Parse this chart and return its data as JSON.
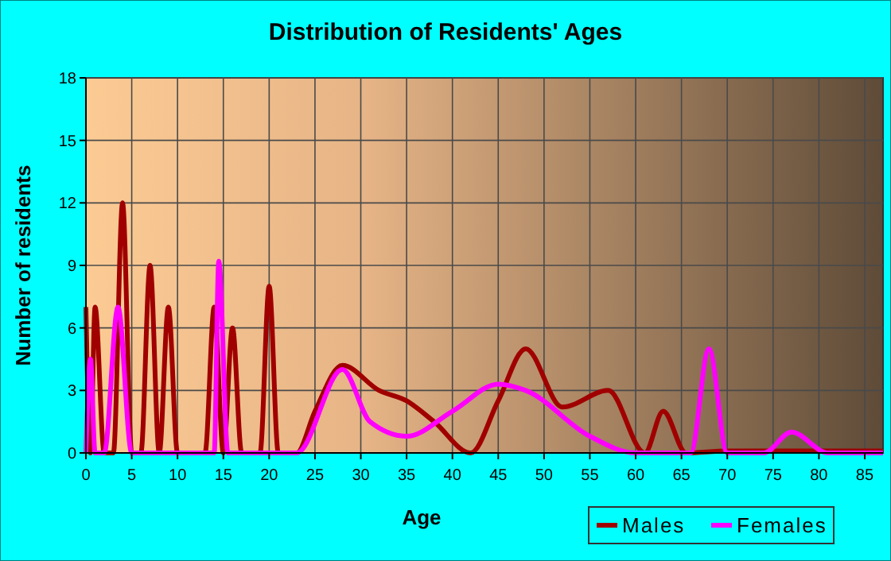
{
  "chart_data": {
    "type": "line",
    "title": "Distribution of Residents' Ages",
    "xlabel": "Age",
    "ylabel": "Number of residents",
    "xlim": [
      0,
      87
    ],
    "xticks": [
      0,
      5,
      10,
      15,
      20,
      25,
      30,
      35,
      40,
      45,
      50,
      55,
      60,
      65,
      70,
      75,
      80,
      85
    ],
    "ylim": [
      0,
      18
    ],
    "yticks": [
      0,
      3,
      6,
      9,
      12,
      15,
      18
    ],
    "grid": true,
    "legend": "bottom right",
    "marker": "none",
    "line_style": "solid",
    "series": [
      {
        "name": "Males",
        "color": "#a00000",
        "x": [
          0,
          0.5,
          1,
          2,
          3,
          4,
          5,
          6,
          7,
          8,
          9,
          10,
          13,
          14,
          15,
          16,
          17,
          19,
          20,
          21,
          23,
          25,
          28,
          32,
          35,
          38,
          42,
          45,
          48,
          52,
          57,
          61,
          63,
          65.5,
          70,
          87
        ],
        "values": [
          7,
          0,
          7,
          0,
          0,
          12,
          0,
          0,
          9,
          0,
          7,
          0,
          0,
          7,
          0,
          6,
          0,
          0,
          8,
          0,
          0,
          2,
          4.2,
          3,
          2.5,
          1.5,
          0,
          2.5,
          5,
          2.2,
          3,
          0,
          2,
          0,
          0.1,
          0.1
        ]
      },
      {
        "name": "Females",
        "color": "#ff00ff",
        "x": [
          0,
          0.5,
          1,
          2,
          3.5,
          5,
          6,
          14,
          14.5,
          15.5,
          23,
          28,
          31,
          35,
          40,
          45,
          48,
          55,
          60,
          66,
          68,
          70,
          74,
          77,
          81,
          87
        ],
        "values": [
          0,
          4.5,
          0,
          0,
          7,
          0,
          0,
          0,
          9.2,
          0,
          0,
          4,
          1.5,
          0.8,
          2,
          3.3,
          3,
          0.8,
          0,
          0,
          5,
          0,
          0,
          1,
          0,
          0
        ]
      }
    ]
  }
}
